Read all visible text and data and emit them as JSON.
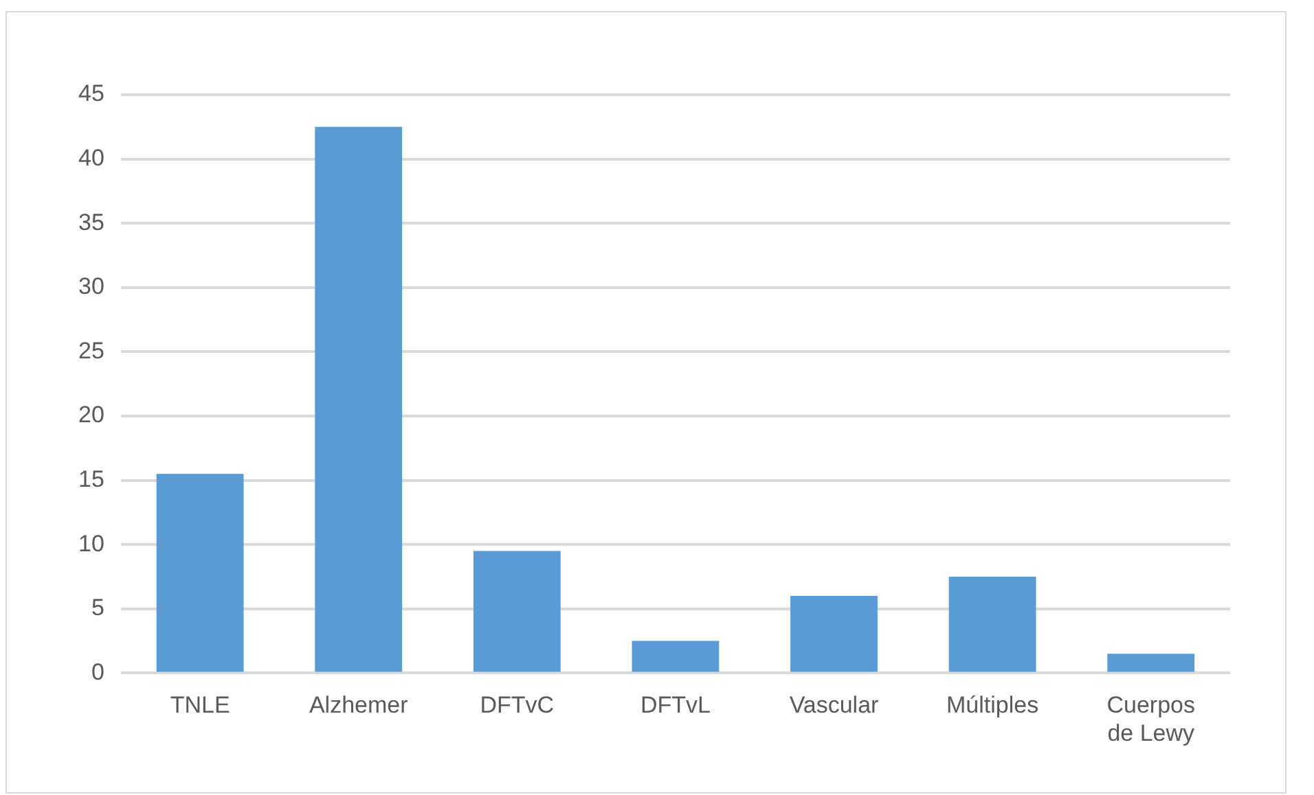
{
  "chart_data": {
    "type": "bar",
    "categories": [
      "TNLE",
      "Alzhemer",
      "DFTvC",
      "DFTvL",
      "Vascular",
      "Múltiples",
      "Cuerpos de Lewy"
    ],
    "values": [
      15.5,
      42.5,
      9.5,
      2.5,
      6,
      7.5,
      1.5
    ],
    "color": "#5b9bd5",
    "ylim": [
      0,
      45
    ],
    "yticks": [
      0,
      5,
      10,
      15,
      20,
      25,
      30,
      35,
      40,
      45
    ],
    "grid": "y"
  }
}
